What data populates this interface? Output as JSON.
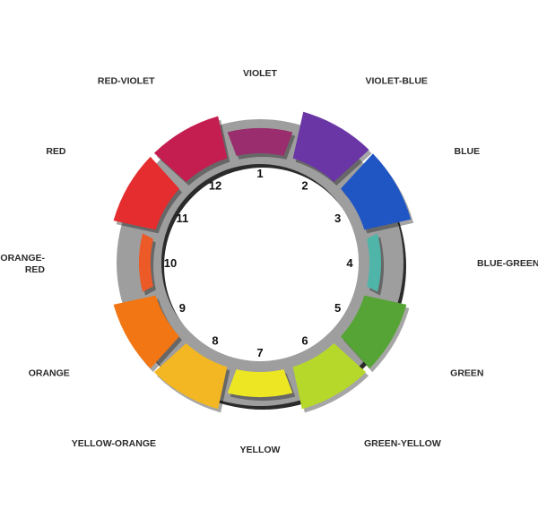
{
  "wheel": {
    "segments": [
      {
        "number": "1",
        "name": "VIOLET",
        "color": "#9a2d6d"
      },
      {
        "number": "2",
        "name": "VIOLET-BLUE",
        "color": "#6a36a6"
      },
      {
        "number": "3",
        "name": "BLUE",
        "color": "#1f56c4"
      },
      {
        "number": "4",
        "name": "BLUE-GREEN",
        "color": "#4fb5a8"
      },
      {
        "number": "5",
        "name": "GREEN",
        "color": "#56a435"
      },
      {
        "number": "6",
        "name": "GREEN-YELLOW",
        "color": "#b6d82a"
      },
      {
        "number": "7",
        "name": "YELLOW",
        "color": "#ede723"
      },
      {
        "number": "8",
        "name": "YELLOW-ORANGE",
        "color": "#f2b722"
      },
      {
        "number": "9",
        "name": "ORANGE",
        "color": "#f27613"
      },
      {
        "number": "10",
        "name": "ORANGE-RED",
        "color": "#ec5a28"
      },
      {
        "number": "11",
        "name": "RED",
        "color": "#e52c2e"
      },
      {
        "number": "12",
        "name": "RED-VIOLET",
        "color": "#c41d4f"
      }
    ],
    "ring_color": "#9e9e9e",
    "ring_shadow_color": "#2b2b2b"
  }
}
